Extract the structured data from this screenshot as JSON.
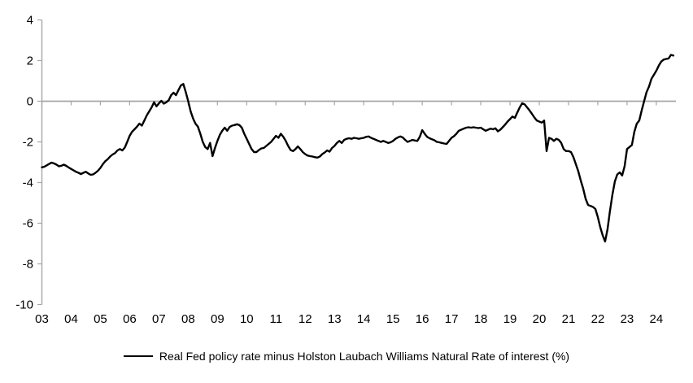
{
  "chart_data": {
    "type": "line",
    "title": "",
    "xlabel": "",
    "ylabel": "",
    "grid": "zero-line-only",
    "legend_position": "bottom-center",
    "axis_color": "#a6a6a6",
    "background": "#ffffff",
    "y_axis": {
      "range": [
        -10,
        4
      ],
      "ticks": [
        4,
        2,
        0,
        -2,
        -4,
        -6,
        -8,
        -10
      ],
      "zero_line": true
    },
    "x_axis": {
      "range_years": [
        2003,
        2024.67
      ],
      "tick_years": [
        2003,
        2004,
        2005,
        2006,
        2007,
        2008,
        2009,
        2010,
        2011,
        2012,
        2013,
        2014,
        2015,
        2016,
        2017,
        2018,
        2019,
        2020,
        2021,
        2022,
        2023,
        2024
      ],
      "labels": [
        "03",
        "04",
        "05",
        "06",
        "07",
        "08",
        "09",
        "10",
        "11",
        "12",
        "13",
        "14",
        "15",
        "16",
        "17",
        "18",
        "19",
        "20",
        "21",
        "22",
        "23",
        "24"
      ]
    },
    "series": [
      {
        "name": "Real Fed policy rate minus Holston Laubach Williams Natural Rate of interest (%)",
        "color": "#000000",
        "line_width": 2.4,
        "start_year": 2003,
        "points_per_year": 12,
        "values": [
          -3.25,
          -3.22,
          -3.15,
          -3.08,
          -3.02,
          -3.06,
          -3.12,
          -3.2,
          -3.17,
          -3.12,
          -3.18,
          -3.26,
          -3.33,
          -3.4,
          -3.47,
          -3.52,
          -3.58,
          -3.52,
          -3.47,
          -3.55,
          -3.62,
          -3.6,
          -3.52,
          -3.42,
          -3.28,
          -3.1,
          -2.95,
          -2.85,
          -2.72,
          -2.62,
          -2.55,
          -2.42,
          -2.35,
          -2.42,
          -2.28,
          -2.0,
          -1.7,
          -1.5,
          -1.38,
          -1.25,
          -1.1,
          -1.2,
          -0.95,
          -0.7,
          -0.5,
          -0.3,
          -0.05,
          -0.25,
          -0.1,
          0.02,
          -0.12,
          -0.05,
          0.05,
          0.3,
          0.42,
          0.3,
          0.55,
          0.78,
          0.85,
          0.45,
          0.0,
          -0.5,
          -0.85,
          -1.1,
          -1.25,
          -1.6,
          -2.0,
          -2.25,
          -2.35,
          -2.05,
          -2.7,
          -2.3,
          -1.95,
          -1.65,
          -1.45,
          -1.3,
          -1.45,
          -1.27,
          -1.2,
          -1.17,
          -1.13,
          -1.17,
          -1.3,
          -1.6,
          -1.85,
          -2.1,
          -2.35,
          -2.5,
          -2.5,
          -2.4,
          -2.32,
          -2.3,
          -2.2,
          -2.1,
          -2.0,
          -1.85,
          -1.7,
          -1.8,
          -1.6,
          -1.75,
          -1.95,
          -2.2,
          -2.4,
          -2.45,
          -2.35,
          -2.22,
          -2.35,
          -2.5,
          -2.6,
          -2.67,
          -2.7,
          -2.72,
          -2.75,
          -2.77,
          -2.72,
          -2.6,
          -2.52,
          -2.42,
          -2.48,
          -2.3,
          -2.2,
          -2.05,
          -1.95,
          -2.05,
          -1.9,
          -1.85,
          -1.82,
          -1.85,
          -1.8,
          -1.82,
          -1.85,
          -1.82,
          -1.8,
          -1.75,
          -1.73,
          -1.8,
          -1.85,
          -1.9,
          -1.95,
          -2.0,
          -1.95,
          -2.0,
          -2.05,
          -2.02,
          -1.95,
          -1.85,
          -1.78,
          -1.73,
          -1.78,
          -1.9,
          -2.0,
          -1.95,
          -1.9,
          -1.93,
          -1.95,
          -1.75,
          -1.42,
          -1.6,
          -1.75,
          -1.82,
          -1.87,
          -1.92,
          -2.0,
          -2.02,
          -2.05,
          -2.08,
          -2.1,
          -1.95,
          -1.8,
          -1.72,
          -1.6,
          -1.45,
          -1.4,
          -1.35,
          -1.3,
          -1.28,
          -1.3,
          -1.28,
          -1.3,
          -1.32,
          -1.3,
          -1.38,
          -1.45,
          -1.4,
          -1.35,
          -1.38,
          -1.33,
          -1.48,
          -1.4,
          -1.28,
          -1.15,
          -1.0,
          -0.88,
          -0.75,
          -0.82,
          -0.55,
          -0.3,
          -0.1,
          -0.15,
          -0.3,
          -0.45,
          -0.62,
          -0.8,
          -0.95,
          -1.0,
          -1.05,
          -0.95,
          -2.45,
          -1.8,
          -1.85,
          -1.95,
          -1.85,
          -1.9,
          -2.05,
          -2.35,
          -2.45,
          -2.45,
          -2.5,
          -2.75,
          -3.1,
          -3.45,
          -3.9,
          -4.3,
          -4.8,
          -5.1,
          -5.15,
          -5.2,
          -5.3,
          -5.7,
          -6.2,
          -6.6,
          -6.9,
          -6.3,
          -5.4,
          -4.6,
          -3.95,
          -3.6,
          -3.5,
          -3.65,
          -3.2,
          -2.35,
          -2.25,
          -2.15,
          -1.5,
          -1.1,
          -0.95,
          -0.45,
          0.0,
          0.45,
          0.72,
          1.1,
          1.3,
          1.5,
          1.75,
          1.95,
          2.05,
          2.08,
          2.1,
          2.28,
          2.25
        ]
      }
    ]
  },
  "legend": {
    "label": "Real Fed policy rate minus Holston Laubach Williams Natural Rate of interest (%)"
  }
}
